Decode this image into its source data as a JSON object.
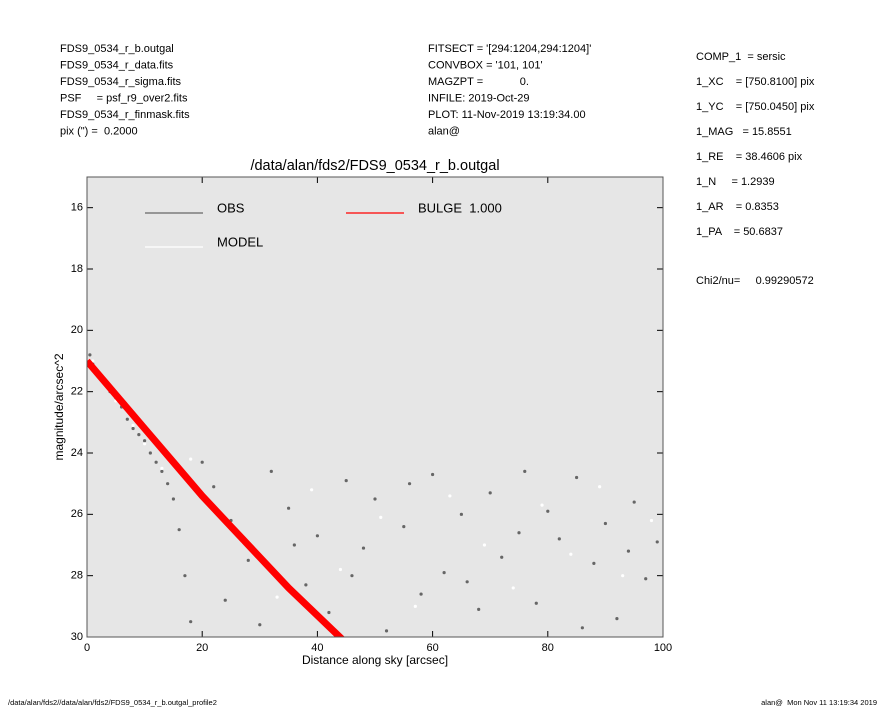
{
  "header": {
    "left": [
      "FDS9_0534_r_b.outgal",
      "FDS9_0534_r_data.fits",
      "FDS9_0534_r_sigma.fits",
      "PSF     = psf_r9_over2.fits",
      "FDS9_0534_r_finmask.fits",
      "pix (\") =  0.2000"
    ],
    "middle": [
      "FITSECT = '[294:1204,294:1204]'",
      "CONVBOX = '101, 101'",
      "MAGZPT =            0.",
      "INFILE: 2019-Oct-29",
      "PLOT: 11-Nov-2019 13:19:34.00",
      "alan@"
    ],
    "right": [
      "COMP_1  = sersic",
      "1_XC    = [750.8100] pix",
      "1_YC    = [750.0450] pix",
      "1_MAG   = 15.8551",
      "1_RE    = 38.4606 pix",
      "1_N     = 1.2939",
      "1_AR    = 0.8353",
      "1_PA    = 50.6837"
    ],
    "chi2": "Chi2/nu=     0.99290572"
  },
  "footer": {
    "left": "/data/alan/fds2//data/alan/fds2/FDS9_0534_r_b.outgal_profile2",
    "right": "alan@  Mon Nov 11 13:19:34 2019"
  },
  "chart_data": {
    "type": "scatter",
    "title": "/data/alan/fds2/FDS9_0534_r_b.outgal",
    "xlabel": "Distance along sky [arcsec]",
    "ylabel": "magnitude/arcsec^2",
    "xlim": [
      0,
      100
    ],
    "ylim": [
      30,
      15
    ],
    "xticks": [
      0,
      20,
      40,
      60,
      80,
      100
    ],
    "yticks": [
      16,
      18,
      20,
      22,
      24,
      26,
      28,
      30
    ],
    "background": "#e6e6e6",
    "series": [
      {
        "name": "OBS",
        "color": "#666666",
        "style": "points",
        "x": [
          0.5,
          1,
          2,
          3,
          4,
          5,
          6,
          7,
          8,
          9,
          10,
          11,
          12,
          13,
          14,
          15,
          16,
          17,
          18,
          20,
          22,
          25,
          28,
          30,
          32,
          35,
          38,
          40,
          42,
          45,
          48,
          50,
          52,
          55,
          58,
          60,
          62,
          65,
          68,
          70,
          72,
          75,
          78,
          80,
          82,
          85,
          88,
          90,
          92,
          95,
          97,
          99,
          24,
          36,
          46,
          56,
          66,
          76,
          86,
          94
        ],
        "values": [
          20.8,
          21.1,
          21.4,
          21.7,
          22,
          22.2,
          22.5,
          22.9,
          23.2,
          23.4,
          23.6,
          24,
          24.3,
          24.6,
          25,
          25.5,
          26.5,
          28,
          29.5,
          24.3,
          25.1,
          26.2,
          27.5,
          29.6,
          24.6,
          25.8,
          28.3,
          26.7,
          29.2,
          24.9,
          27.1,
          25.5,
          29.8,
          26.4,
          28.6,
          24.7,
          27.9,
          26,
          29.1,
          25.3,
          27.4,
          26.6,
          28.9,
          25.9,
          26.8,
          24.8,
          27.6,
          26.3,
          29.4,
          25.6,
          28.1,
          26.9,
          28.8,
          27,
          28,
          25,
          28.2,
          24.6,
          29.7,
          27.2
        ]
      },
      {
        "name": "MODEL",
        "color": "#ffffff",
        "style": "points",
        "x": [
          1,
          3,
          5,
          8,
          10,
          13,
          18,
          21,
          27,
          33,
          39,
          44,
          51,
          57,
          63,
          69,
          74,
          79,
          84,
          89,
          93,
          98
        ],
        "values": [
          21,
          21.6,
          22.3,
          23.1,
          23.7,
          24.5,
          24.2,
          25.6,
          26.9,
          28.7,
          25.2,
          27.8,
          26.1,
          29,
          25.4,
          27,
          28.4,
          25.7,
          27.3,
          25.1,
          28,
          26.2
        ]
      },
      {
        "name": "BULGE  1.000",
        "color": "#ff0000",
        "style": "line",
        "x": [
          0,
          5,
          10,
          15,
          20,
          25,
          30,
          35,
          40,
          45
        ],
        "values": [
          21,
          22.1,
          23.2,
          24.3,
          25.4,
          26.4,
          27.4,
          28.4,
          29.3,
          30.2
        ]
      }
    ]
  }
}
